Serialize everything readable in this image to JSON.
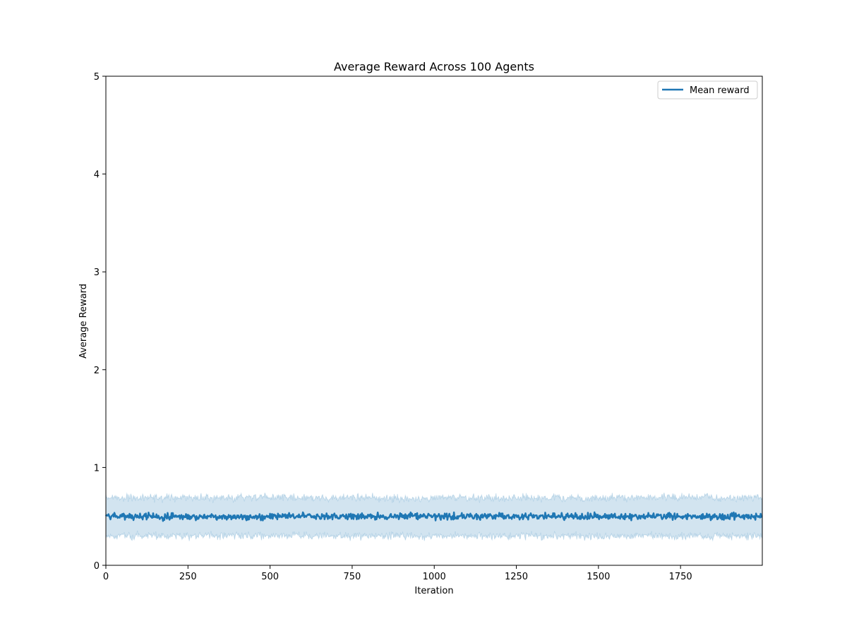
{
  "chart_data": {
    "type": "line",
    "title": "Average Reward Across 100 Agents",
    "xlabel": "Iteration",
    "ylabel": "Average Reward",
    "xlim": [
      0,
      1999
    ],
    "ylim": [
      0,
      5
    ],
    "xticks": [
      0,
      250,
      500,
      750,
      1000,
      1250,
      1500,
      1750
    ],
    "yticks": [
      0,
      1,
      2,
      3,
      4,
      5
    ],
    "grid": false,
    "legend_position": "top-right",
    "series": [
      {
        "name": "Mean reward",
        "color": "#1f77b4",
        "mean_level": 0.5,
        "mean_fluctuation": [
          0.46,
          0.55
        ],
        "band_color": "#1f77b4",
        "band_upper_range": [
          0.64,
          0.74
        ],
        "band_lower_range": [
          0.25,
          0.35
        ]
      }
    ]
  }
}
